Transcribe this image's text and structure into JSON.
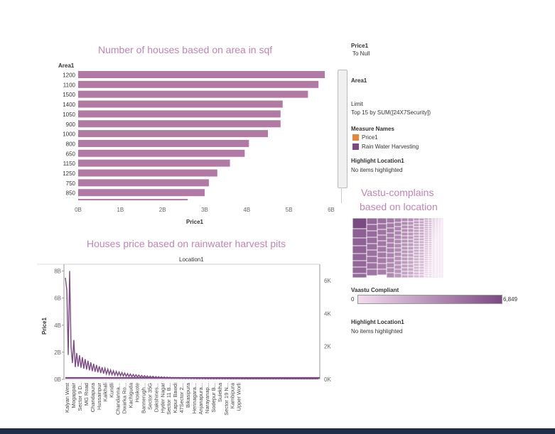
{
  "colors": {
    "bar": "#b07aa5",
    "line": "#7b4a83",
    "treemap_dark": "#7b4a83",
    "treemap_light": "#f3dced",
    "accent_orange": "#e8873a",
    "title": "#c084b4"
  },
  "chart_data": [
    {
      "type": "bar",
      "orientation": "horizontal",
      "title": "Number of houses based on area in sqf",
      "row_header": "Area1",
      "xlabel": "Price1",
      "categories": [
        "1200",
        "1100",
        "1500",
        "1400",
        "1050",
        "900",
        "1000",
        "800",
        "650",
        "1150",
        "1250",
        "750",
        "850"
      ],
      "values": [
        5.85,
        5.7,
        5.45,
        4.85,
        4.8,
        4.8,
        4.5,
        4.05,
        3.95,
        3.6,
        3.3,
        3.1,
        3.0
      ],
      "partial_bar_value": 2.6,
      "xticks": [
        "0B",
        "1B",
        "2B",
        "3B",
        "4B",
        "5B",
        "6B"
      ],
      "xlim": [
        0,
        6
      ]
    },
    {
      "type": "line",
      "title": "Houses price based on rainwater harvest pits",
      "xlabel": "Location1",
      "ylabel": "Price1",
      "y2label": "Rain Water Harvesting",
      "yticks": [
        "8B",
        "6B",
        "4B",
        "2B",
        "0B"
      ],
      "ylim": [
        0,
        8.5
      ],
      "y2ticks": [
        "6K",
        "4K",
        "2K",
        "0K"
      ],
      "y2lim": [
        0,
        7
      ],
      "categories": [
        "Kalyan West",
        "Mogappair",
        "Sector 9 D..",
        "MG Road",
        "Chandapura",
        "Hussainpur",
        "Kaikhali",
        "Kundli",
        "Chandanna...",
        "Dwarka Ro...",
        "Kachiguda",
        "Hoskote",
        "Bannerugh...",
        "Sector 35G",
        "Dakshines...",
        "Hyder Nagar",
        "Sector 11 B...",
        "Kapur Bawdi",
        "47Sector 2...",
        "Bikasipura",
        "Hennagara...",
        "Anjanapura...",
        "Narayanap...",
        "Sodepur B...",
        "Sulekha",
        "Sector 19 N...",
        "Kambipura",
        "Upper Worli"
      ]
    },
    {
      "type": "treemap",
      "title_line1": "Vastu-complains",
      "title_line2": "based on location",
      "legend_title": "Vaastu Compliant",
      "range": [
        "0",
        "6,849"
      ]
    }
  ],
  "side_panel": {
    "filter_price": {
      "title": "Price1",
      "value": "To Null"
    },
    "filter_area": {
      "title": "Area1"
    },
    "limit": {
      "title": "Limit",
      "value": "Top 15 by SUM([24X7Security])"
    },
    "measure_names": {
      "title": "Measure Names",
      "items": [
        "Price1",
        "Rain Water Harvesting"
      ]
    },
    "highlight1": {
      "title": "Highlight Location1",
      "value": "No items highlighted"
    },
    "highlight2": {
      "title": "Highlight Location1",
      "value": "No items highlighted"
    }
  }
}
